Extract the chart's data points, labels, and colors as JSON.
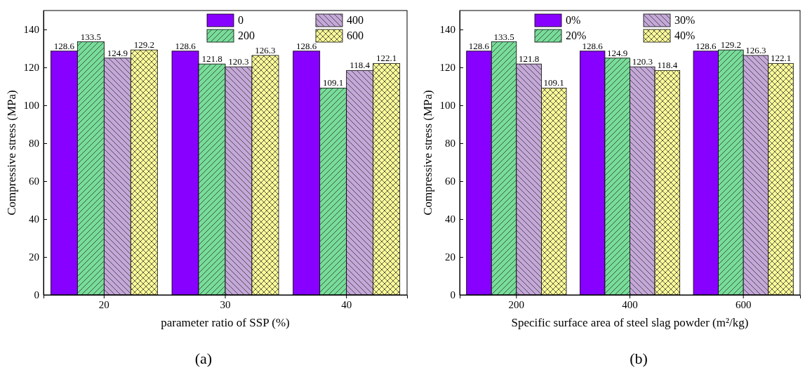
{
  "chart_data": [
    {
      "type": "bar",
      "xlabel": "parameter ratio of SSP (%)",
      "ylabel": "Compressive stress (MPa)",
      "categories": [
        "20",
        "30",
        "40"
      ],
      "ylim": [
        0,
        150
      ],
      "yticks": [
        0,
        20,
        40,
        60,
        80,
        100,
        120,
        140
      ],
      "data_labels": true,
      "legend": "top",
      "annotations": [
        "(a)"
      ],
      "series": [
        {
          "name": "0",
          "color": "#8800ff",
          "values": [
            128.6,
            128.6,
            128.6
          ]
        },
        {
          "name": "200",
          "color": "#77dd99",
          "values": [
            133.5,
            121.8,
            109.1
          ]
        },
        {
          "name": "400",
          "color": "#c4a8d8",
          "values": [
            124.9,
            120.3,
            118.4
          ]
        },
        {
          "name": "600",
          "color": "#ffff99",
          "values": [
            129.2,
            126.3,
            122.1
          ]
        }
      ]
    },
    {
      "type": "bar",
      "xlabel": "Specific surface area of steel slag powder (m²/kg)",
      "ylabel": "Compressive stress (MPa)",
      "categories": [
        "200",
        "400",
        "600"
      ],
      "ylim": [
        0,
        150
      ],
      "yticks": [
        0,
        20,
        40,
        60,
        80,
        100,
        120,
        140
      ],
      "data_labels": true,
      "legend": "top",
      "annotations": [
        "(b)"
      ],
      "series": [
        {
          "name": "0%",
          "color": "#8800ff",
          "values": [
            128.6,
            128.6,
            128.6
          ]
        },
        {
          "name": "20%",
          "color": "#77dd99",
          "values": [
            133.5,
            124.9,
            129.2
          ]
        },
        {
          "name": "30%",
          "color": "#c4a8d8",
          "values": [
            121.8,
            120.3,
            126.3
          ]
        },
        {
          "name": "40%",
          "color": "#ffff99",
          "values": [
            109.1,
            118.4,
            122.1
          ]
        }
      ]
    }
  ]
}
